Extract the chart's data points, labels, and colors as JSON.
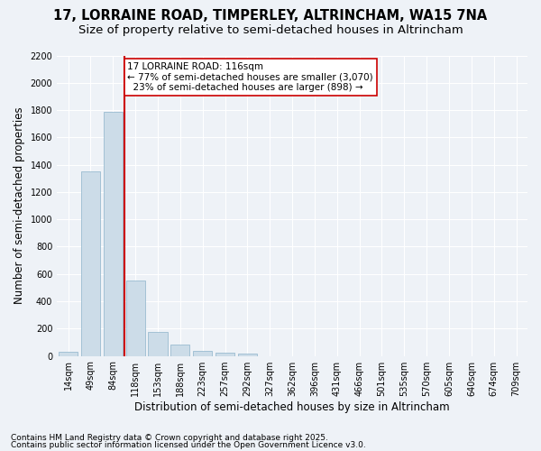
{
  "title1": "17, LORRAINE ROAD, TIMPERLEY, ALTRINCHAM, WA15 7NA",
  "title2": "Size of property relative to semi-detached houses in Altrincham",
  "xlabel": "Distribution of semi-detached houses by size in Altrincham",
  "ylabel": "Number of semi-detached properties",
  "categories": [
    "14sqm",
    "49sqm",
    "84sqm",
    "118sqm",
    "153sqm",
    "188sqm",
    "223sqm",
    "257sqm",
    "292sqm",
    "327sqm",
    "362sqm",
    "396sqm",
    "431sqm",
    "466sqm",
    "501sqm",
    "535sqm",
    "570sqm",
    "605sqm",
    "640sqm",
    "674sqm",
    "709sqm"
  ],
  "bar_heights": [
    30,
    1350,
    1790,
    550,
    175,
    85,
    35,
    25,
    15,
    0,
    0,
    0,
    0,
    0,
    0,
    0,
    0,
    0,
    0,
    0,
    0
  ],
  "bar_color": "#ccdce8",
  "bar_edge_color": "#9abcd0",
  "vline_color": "#cc0000",
  "annotation_line1": "17 LORRAINE ROAD: 116sqm",
  "annotation_line2": "← 77% of semi-detached houses are smaller (3,070)",
  "annotation_line3": "  23% of semi-detached houses are larger (898) →",
  "ylim_max": 2200,
  "yticks": [
    0,
    200,
    400,
    600,
    800,
    1000,
    1200,
    1400,
    1600,
    1800,
    2000,
    2200
  ],
  "footnote1": "Contains HM Land Registry data © Crown copyright and database right 2025.",
  "footnote2": "Contains public sector information licensed under the Open Government Licence v3.0.",
  "bg_color": "#eef2f7",
  "grid_color": "#ffffff",
  "title_fontsize": 10.5,
  "subtitle_fontsize": 9.5,
  "axis_label_fontsize": 8.5,
  "tick_fontsize": 7,
  "annotation_fontsize": 7.5,
  "footnote_fontsize": 6.5
}
